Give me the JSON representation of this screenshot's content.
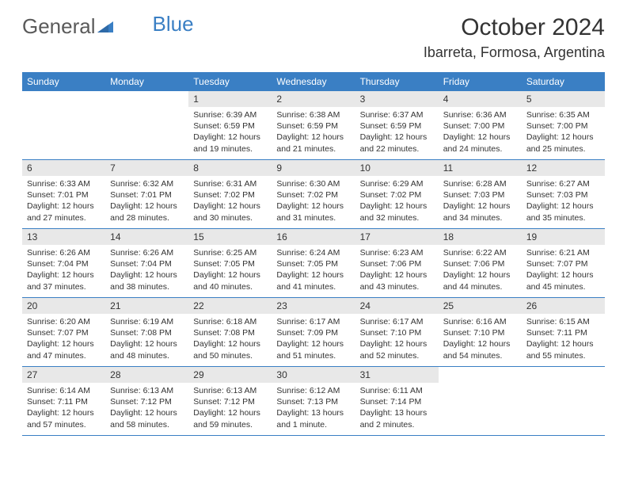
{
  "logo": {
    "text1": "General",
    "text2": "Blue"
  },
  "title": "October 2024",
  "location": "Ibarreta, Formosa, Argentina",
  "colors": {
    "header_bg": "#3a7fc4",
    "header_text": "#ffffff",
    "daynum_bg": "#e8e8e8",
    "text": "#333333",
    "border": "#3a7fc4",
    "page_bg": "#ffffff",
    "logo_gray": "#5a5a5a",
    "logo_blue": "#3a7fc4"
  },
  "fonts": {
    "title_size": 30,
    "location_size": 18,
    "logo_size": 26,
    "dayheader_size": 12,
    "daynum_size": 12,
    "info_size": 10.5
  },
  "dayNames": [
    "Sunday",
    "Monday",
    "Tuesday",
    "Wednesday",
    "Thursday",
    "Friday",
    "Saturday"
  ],
  "weeks": [
    [
      {
        "day": "",
        "sunrise": "",
        "sunset": "",
        "daylight": ""
      },
      {
        "day": "",
        "sunrise": "",
        "sunset": "",
        "daylight": ""
      },
      {
        "day": "1",
        "sunrise": "Sunrise: 6:39 AM",
        "sunset": "Sunset: 6:59 PM",
        "daylight": "Daylight: 12 hours and 19 minutes."
      },
      {
        "day": "2",
        "sunrise": "Sunrise: 6:38 AM",
        "sunset": "Sunset: 6:59 PM",
        "daylight": "Daylight: 12 hours and 21 minutes."
      },
      {
        "day": "3",
        "sunrise": "Sunrise: 6:37 AM",
        "sunset": "Sunset: 6:59 PM",
        "daylight": "Daylight: 12 hours and 22 minutes."
      },
      {
        "day": "4",
        "sunrise": "Sunrise: 6:36 AM",
        "sunset": "Sunset: 7:00 PM",
        "daylight": "Daylight: 12 hours and 24 minutes."
      },
      {
        "day": "5",
        "sunrise": "Sunrise: 6:35 AM",
        "sunset": "Sunset: 7:00 PM",
        "daylight": "Daylight: 12 hours and 25 minutes."
      }
    ],
    [
      {
        "day": "6",
        "sunrise": "Sunrise: 6:33 AM",
        "sunset": "Sunset: 7:01 PM",
        "daylight": "Daylight: 12 hours and 27 minutes."
      },
      {
        "day": "7",
        "sunrise": "Sunrise: 6:32 AM",
        "sunset": "Sunset: 7:01 PM",
        "daylight": "Daylight: 12 hours and 28 minutes."
      },
      {
        "day": "8",
        "sunrise": "Sunrise: 6:31 AM",
        "sunset": "Sunset: 7:02 PM",
        "daylight": "Daylight: 12 hours and 30 minutes."
      },
      {
        "day": "9",
        "sunrise": "Sunrise: 6:30 AM",
        "sunset": "Sunset: 7:02 PM",
        "daylight": "Daylight: 12 hours and 31 minutes."
      },
      {
        "day": "10",
        "sunrise": "Sunrise: 6:29 AM",
        "sunset": "Sunset: 7:02 PM",
        "daylight": "Daylight: 12 hours and 32 minutes."
      },
      {
        "day": "11",
        "sunrise": "Sunrise: 6:28 AM",
        "sunset": "Sunset: 7:03 PM",
        "daylight": "Daylight: 12 hours and 34 minutes."
      },
      {
        "day": "12",
        "sunrise": "Sunrise: 6:27 AM",
        "sunset": "Sunset: 7:03 PM",
        "daylight": "Daylight: 12 hours and 35 minutes."
      }
    ],
    [
      {
        "day": "13",
        "sunrise": "Sunrise: 6:26 AM",
        "sunset": "Sunset: 7:04 PM",
        "daylight": "Daylight: 12 hours and 37 minutes."
      },
      {
        "day": "14",
        "sunrise": "Sunrise: 6:26 AM",
        "sunset": "Sunset: 7:04 PM",
        "daylight": "Daylight: 12 hours and 38 minutes."
      },
      {
        "day": "15",
        "sunrise": "Sunrise: 6:25 AM",
        "sunset": "Sunset: 7:05 PM",
        "daylight": "Daylight: 12 hours and 40 minutes."
      },
      {
        "day": "16",
        "sunrise": "Sunrise: 6:24 AM",
        "sunset": "Sunset: 7:05 PM",
        "daylight": "Daylight: 12 hours and 41 minutes."
      },
      {
        "day": "17",
        "sunrise": "Sunrise: 6:23 AM",
        "sunset": "Sunset: 7:06 PM",
        "daylight": "Daylight: 12 hours and 43 minutes."
      },
      {
        "day": "18",
        "sunrise": "Sunrise: 6:22 AM",
        "sunset": "Sunset: 7:06 PM",
        "daylight": "Daylight: 12 hours and 44 minutes."
      },
      {
        "day": "19",
        "sunrise": "Sunrise: 6:21 AM",
        "sunset": "Sunset: 7:07 PM",
        "daylight": "Daylight: 12 hours and 45 minutes."
      }
    ],
    [
      {
        "day": "20",
        "sunrise": "Sunrise: 6:20 AM",
        "sunset": "Sunset: 7:07 PM",
        "daylight": "Daylight: 12 hours and 47 minutes."
      },
      {
        "day": "21",
        "sunrise": "Sunrise: 6:19 AM",
        "sunset": "Sunset: 7:08 PM",
        "daylight": "Daylight: 12 hours and 48 minutes."
      },
      {
        "day": "22",
        "sunrise": "Sunrise: 6:18 AM",
        "sunset": "Sunset: 7:08 PM",
        "daylight": "Daylight: 12 hours and 50 minutes."
      },
      {
        "day": "23",
        "sunrise": "Sunrise: 6:17 AM",
        "sunset": "Sunset: 7:09 PM",
        "daylight": "Daylight: 12 hours and 51 minutes."
      },
      {
        "day": "24",
        "sunrise": "Sunrise: 6:17 AM",
        "sunset": "Sunset: 7:10 PM",
        "daylight": "Daylight: 12 hours and 52 minutes."
      },
      {
        "day": "25",
        "sunrise": "Sunrise: 6:16 AM",
        "sunset": "Sunset: 7:10 PM",
        "daylight": "Daylight: 12 hours and 54 minutes."
      },
      {
        "day": "26",
        "sunrise": "Sunrise: 6:15 AM",
        "sunset": "Sunset: 7:11 PM",
        "daylight": "Daylight: 12 hours and 55 minutes."
      }
    ],
    [
      {
        "day": "27",
        "sunrise": "Sunrise: 6:14 AM",
        "sunset": "Sunset: 7:11 PM",
        "daylight": "Daylight: 12 hours and 57 minutes."
      },
      {
        "day": "28",
        "sunrise": "Sunrise: 6:13 AM",
        "sunset": "Sunset: 7:12 PM",
        "daylight": "Daylight: 12 hours and 58 minutes."
      },
      {
        "day": "29",
        "sunrise": "Sunrise: 6:13 AM",
        "sunset": "Sunset: 7:12 PM",
        "daylight": "Daylight: 12 hours and 59 minutes."
      },
      {
        "day": "30",
        "sunrise": "Sunrise: 6:12 AM",
        "sunset": "Sunset: 7:13 PM",
        "daylight": "Daylight: 13 hours and 1 minute."
      },
      {
        "day": "31",
        "sunrise": "Sunrise: 6:11 AM",
        "sunset": "Sunset: 7:14 PM",
        "daylight": "Daylight: 13 hours and 2 minutes."
      },
      {
        "day": "",
        "sunrise": "",
        "sunset": "",
        "daylight": ""
      },
      {
        "day": "",
        "sunrise": "",
        "sunset": "",
        "daylight": ""
      }
    ]
  ]
}
